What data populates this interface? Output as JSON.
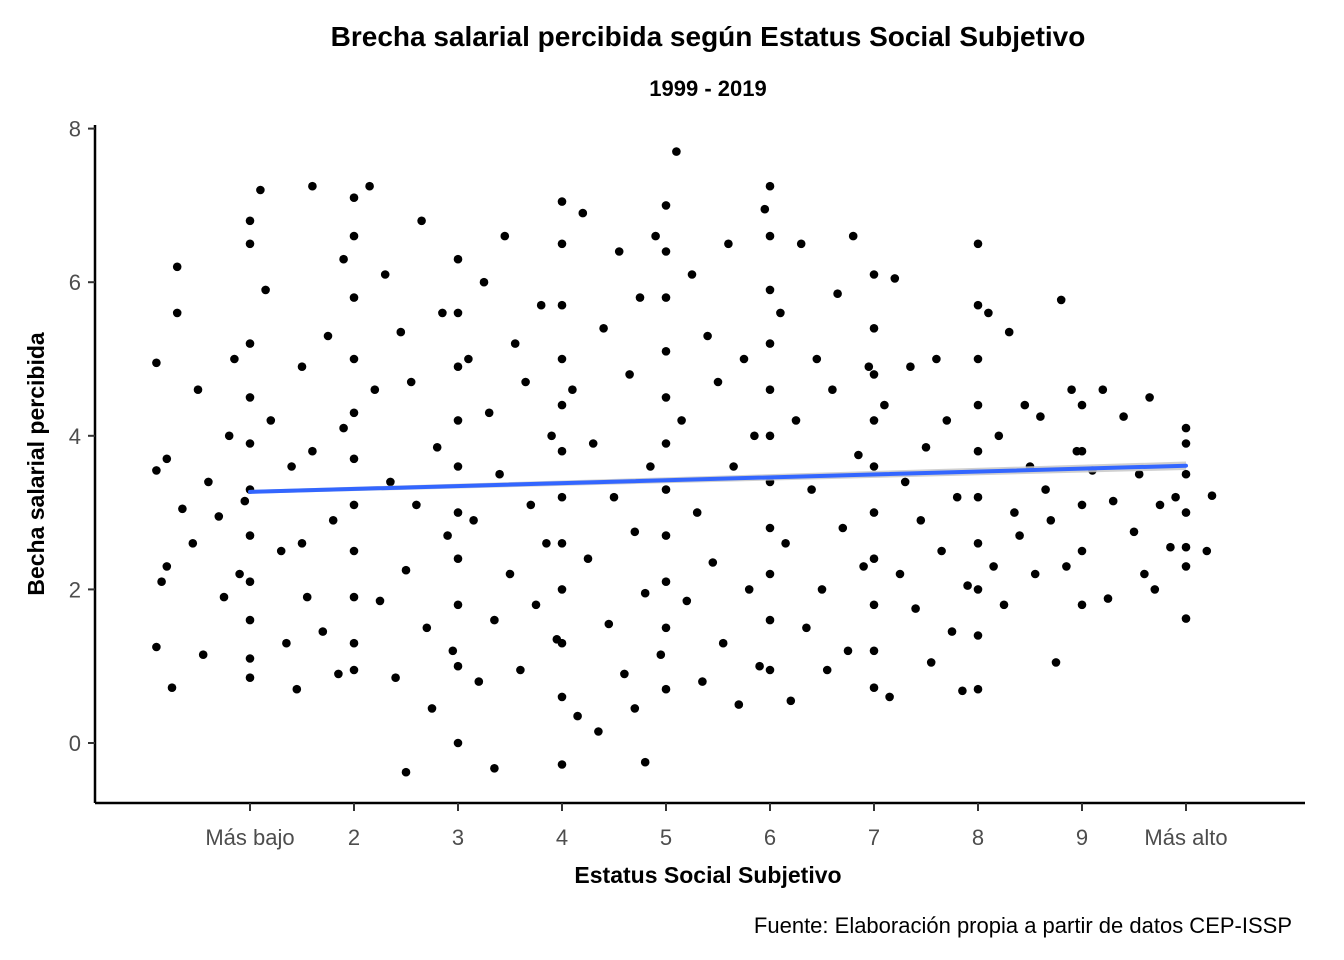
{
  "chart_data": {
    "type": "scatter",
    "title": "Brecha salarial percibida según Estatus Social Subjetivo",
    "subtitle": "1999 - 2019",
    "xlabel": "Estatus Social Subjetivo",
    "ylabel": "Becha salarial percibida",
    "caption": "Fuente: Elaboración propia a partir de datos CEP-ISSP",
    "xlim": [
      -0.5,
      11.2
    ],
    "ylim": [
      -0.8,
      8.1
    ],
    "x_ticks": [
      1,
      2,
      3,
      4,
      5,
      6,
      7,
      8,
      9,
      10
    ],
    "x_tick_labels": [
      "Más bajo",
      "2",
      "3",
      "4",
      "5",
      "6",
      "7",
      "8",
      "9",
      "Más alto"
    ],
    "y_ticks": [
      0,
      2,
      4,
      6,
      8
    ],
    "y_tick_labels": [
      "0",
      "2",
      "4",
      "6",
      "8"
    ],
    "grid": false,
    "point_color": "#000000",
    "fit_color": "#3366ff",
    "ribbon_color": "#c8c8c8",
    "fit_line": {
      "method": "lm",
      "x": [
        1,
        10
      ],
      "y": [
        3.27,
        3.61
      ],
      "ci_halfwidth": [
        0.025,
        0.055
      ]
    },
    "points": [
      [
        0.1,
        3.55
      ],
      [
        0.1,
        4.95
      ],
      [
        0.2,
        3.7
      ],
      [
        0.3,
        5.6
      ],
      [
        0.3,
        6.2
      ],
      [
        0.2,
        2.3
      ],
      [
        0.1,
        1.25
      ],
      [
        0.25,
        0.72
      ],
      [
        0.15,
        2.1
      ],
      [
        0.35,
        3.05
      ],
      [
        0.45,
        2.6
      ],
      [
        0.5,
        4.6
      ],
      [
        0.55,
        1.15
      ],
      [
        0.6,
        3.4
      ],
      [
        0.7,
        2.95
      ],
      [
        0.75,
        1.9
      ],
      [
        0.8,
        4.0
      ],
      [
        0.85,
        5.0
      ],
      [
        0.9,
        2.2
      ],
      [
        0.95,
        3.15
      ],
      [
        1,
        6.8
      ],
      [
        1,
        6.5
      ],
      [
        1,
        5.2
      ],
      [
        1,
        4.5
      ],
      [
        1,
        3.9
      ],
      [
        1,
        3.3
      ],
      [
        1,
        2.7
      ],
      [
        1,
        2.1
      ],
      [
        1,
        1.6
      ],
      [
        1,
        1.1
      ],
      [
        1,
        0.85
      ],
      [
        1.1,
        7.2
      ],
      [
        1.15,
        5.9
      ],
      [
        1.2,
        4.2
      ],
      [
        1.3,
        2.5
      ],
      [
        1.35,
        1.3
      ],
      [
        1.4,
        3.6
      ],
      [
        1.45,
        0.7
      ],
      [
        1.5,
        4.9
      ],
      [
        1.5,
        2.6
      ],
      [
        1.55,
        1.9
      ],
      [
        1.6,
        7.25
      ],
      [
        1.6,
        3.8
      ],
      [
        1.7,
        1.45
      ],
      [
        1.75,
        5.3
      ],
      [
        1.8,
        2.9
      ],
      [
        1.85,
        0.9
      ],
      [
        1.9,
        6.3
      ],
      [
        1.9,
        4.1
      ],
      [
        2,
        7.1
      ],
      [
        2,
        6.6
      ],
      [
        2,
        5.8
      ],
      [
        2,
        5.0
      ],
      [
        2,
        4.3
      ],
      [
        2,
        3.7
      ],
      [
        2,
        3.1
      ],
      [
        2,
        2.5
      ],
      [
        2,
        1.9
      ],
      [
        2,
        1.3
      ],
      [
        2,
        0.95
      ],
      [
        2.15,
        7.25
      ],
      [
        2.2,
        4.6
      ],
      [
        2.25,
        1.85
      ],
      [
        2.3,
        6.1
      ],
      [
        2.35,
        3.4
      ],
      [
        2.4,
        0.85
      ],
      [
        2.45,
        5.35
      ],
      [
        2.5,
        2.25
      ],
      [
        2.5,
        -0.38
      ],
      [
        2.55,
        4.7
      ],
      [
        2.6,
        3.1
      ],
      [
        2.65,
        6.8
      ],
      [
        2.7,
        1.5
      ],
      [
        2.75,
        0.45
      ],
      [
        2.8,
        3.85
      ],
      [
        2.85,
        5.6
      ],
      [
        2.9,
        2.7
      ],
      [
        2.95,
        1.2
      ],
      [
        3,
        6.3
      ],
      [
        3,
        5.6
      ],
      [
        3,
        4.9
      ],
      [
        3,
        4.2
      ],
      [
        3,
        3.6
      ],
      [
        3,
        3.0
      ],
      [
        3,
        2.4
      ],
      [
        3,
        1.8
      ],
      [
        3,
        1.0
      ],
      [
        3,
        0.0
      ],
      [
        3.1,
        5.0
      ],
      [
        3.15,
        2.9
      ],
      [
        3.2,
        0.8
      ],
      [
        3.25,
        6.0
      ],
      [
        3.3,
        4.3
      ],
      [
        3.35,
        1.6
      ],
      [
        3.35,
        -0.33
      ],
      [
        3.4,
        3.5
      ],
      [
        3.45,
        6.6
      ],
      [
        3.5,
        2.2
      ],
      [
        3.55,
        5.2
      ],
      [
        3.6,
        0.95
      ],
      [
        3.65,
        4.7
      ],
      [
        3.7,
        3.1
      ],
      [
        3.75,
        1.8
      ],
      [
        3.8,
        5.7
      ],
      [
        3.85,
        2.6
      ],
      [
        3.9,
        4.0
      ],
      [
        3.95,
        1.35
      ],
      [
        4,
        7.05
      ],
      [
        4,
        6.5
      ],
      [
        4,
        5.7
      ],
      [
        4,
        5.0
      ],
      [
        4,
        4.4
      ],
      [
        4,
        3.8
      ],
      [
        4,
        3.2
      ],
      [
        4,
        2.6
      ],
      [
        4,
        2.0
      ],
      [
        4,
        1.3
      ],
      [
        4,
        0.6
      ],
      [
        4,
        -0.28
      ],
      [
        4.1,
        4.6
      ],
      [
        4.15,
        0.35
      ],
      [
        4.2,
        6.9
      ],
      [
        4.25,
        2.4
      ],
      [
        4.3,
        3.9
      ],
      [
        4.35,
        0.15
      ],
      [
        4.4,
        5.4
      ],
      [
        4.45,
        1.55
      ],
      [
        4.5,
        3.2
      ],
      [
        4.55,
        6.4
      ],
      [
        4.6,
        0.9
      ],
      [
        4.65,
        4.8
      ],
      [
        4.7,
        2.75
      ],
      [
        4.7,
        0.45
      ],
      [
        4.75,
        5.8
      ],
      [
        4.8,
        1.95
      ],
      [
        4.8,
        -0.25
      ],
      [
        4.85,
        3.6
      ],
      [
        4.9,
        6.6
      ],
      [
        4.95,
        1.15
      ],
      [
        5,
        7.0
      ],
      [
        5,
        6.4
      ],
      [
        5,
        5.8
      ],
      [
        5,
        5.1
      ],
      [
        5,
        4.5
      ],
      [
        5,
        3.9
      ],
      [
        5,
        3.3
      ],
      [
        5,
        2.7
      ],
      [
        5,
        2.1
      ],
      [
        5,
        1.5
      ],
      [
        5,
        0.7
      ],
      [
        5.1,
        7.7
      ],
      [
        5.15,
        4.2
      ],
      [
        5.2,
        1.85
      ],
      [
        5.25,
        6.1
      ],
      [
        5.3,
        3.0
      ],
      [
        5.35,
        0.8
      ],
      [
        5.4,
        5.3
      ],
      [
        5.45,
        2.35
      ],
      [
        5.5,
        4.7
      ],
      [
        5.55,
        1.3
      ],
      [
        5.6,
        6.5
      ],
      [
        5.65,
        3.6
      ],
      [
        5.7,
        0.5
      ],
      [
        5.75,
        5.0
      ],
      [
        5.8,
        2.0
      ],
      [
        5.85,
        4.0
      ],
      [
        5.9,
        1.0
      ],
      [
        5.95,
        6.95
      ],
      [
        6,
        7.25
      ],
      [
        6,
        6.6
      ],
      [
        6,
        5.9
      ],
      [
        6,
        5.2
      ],
      [
        6,
        4.6
      ],
      [
        6,
        4.0
      ],
      [
        6,
        3.4
      ],
      [
        6,
        2.8
      ],
      [
        6,
        2.2
      ],
      [
        6,
        1.6
      ],
      [
        6,
        0.95
      ],
      [
        6.1,
        5.6
      ],
      [
        6.15,
        2.6
      ],
      [
        6.2,
        0.55
      ],
      [
        6.25,
        4.2
      ],
      [
        6.3,
        6.5
      ],
      [
        6.35,
        1.5
      ],
      [
        6.4,
        3.3
      ],
      [
        6.45,
        5.0
      ],
      [
        6.5,
        2.0
      ],
      [
        6.55,
        0.95
      ],
      [
        6.6,
        4.6
      ],
      [
        6.65,
        5.85
      ],
      [
        6.7,
        2.8
      ],
      [
        6.75,
        1.2
      ],
      [
        6.8,
        6.6
      ],
      [
        6.85,
        3.75
      ],
      [
        6.9,
        2.3
      ],
      [
        6.95,
        4.9
      ],
      [
        7,
        6.1
      ],
      [
        7,
        5.4
      ],
      [
        7,
        4.8
      ],
      [
        7,
        4.2
      ],
      [
        7,
        3.6
      ],
      [
        7,
        3.0
      ],
      [
        7,
        2.4
      ],
      [
        7,
        1.8
      ],
      [
        7,
        1.2
      ],
      [
        7,
        0.72
      ],
      [
        7.1,
        4.4
      ],
      [
        7.15,
        0.6
      ],
      [
        7.2,
        6.05
      ],
      [
        7.25,
        2.2
      ],
      [
        7.3,
        3.4
      ],
      [
        7.35,
        4.9
      ],
      [
        7.4,
        1.75
      ],
      [
        7.45,
        2.9
      ],
      [
        7.5,
        3.85
      ],
      [
        7.55,
        1.05
      ],
      [
        7.6,
        5.0
      ],
      [
        7.65,
        2.5
      ],
      [
        7.7,
        4.2
      ],
      [
        7.75,
        1.45
      ],
      [
        7.8,
        3.2
      ],
      [
        7.85,
        0.68
      ],
      [
        7.9,
        2.05
      ],
      [
        8,
        6.5
      ],
      [
        8,
        5.7
      ],
      [
        8,
        5.0
      ],
      [
        8,
        4.4
      ],
      [
        8,
        3.8
      ],
      [
        8,
        3.2
      ],
      [
        8,
        2.6
      ],
      [
        8,
        2.0
      ],
      [
        8,
        1.4
      ],
      [
        8,
        0.7
      ],
      [
        8.1,
        5.6
      ],
      [
        8.15,
        2.3
      ],
      [
        8.2,
        4.0
      ],
      [
        8.25,
        1.8
      ],
      [
        8.3,
        5.35
      ],
      [
        8.35,
        3.0
      ],
      [
        8.4,
        2.7
      ],
      [
        8.45,
        4.4
      ],
      [
        8.5,
        3.6
      ],
      [
        8.55,
        2.2
      ],
      [
        8.6,
        4.25
      ],
      [
        8.65,
        3.3
      ],
      [
        8.7,
        2.9
      ],
      [
        8.75,
        1.05
      ],
      [
        8.8,
        5.77
      ],
      [
        8.85,
        2.3
      ],
      [
        8.9,
        4.6
      ],
      [
        8.95,
        3.8
      ],
      [
        9,
        4.4
      ],
      [
        9,
        3.8
      ],
      [
        9,
        3.1
      ],
      [
        9,
        2.5
      ],
      [
        9,
        1.8
      ],
      [
        9.1,
        3.55
      ],
      [
        9.2,
        4.6
      ],
      [
        9.25,
        1.88
      ],
      [
        9.3,
        3.15
      ],
      [
        9.4,
        4.25
      ],
      [
        9.5,
        2.75
      ],
      [
        9.55,
        3.5
      ],
      [
        9.6,
        2.2
      ],
      [
        9.65,
        4.5
      ],
      [
        9.7,
        2.0
      ],
      [
        9.75,
        3.1
      ],
      [
        9.85,
        2.55
      ],
      [
        9.9,
        3.2
      ],
      [
        10,
        4.1
      ],
      [
        10,
        3.9
      ],
      [
        10,
        3.5
      ],
      [
        10,
        3.0
      ],
      [
        10,
        2.55
      ],
      [
        10,
        2.3
      ],
      [
        10,
        1.62
      ],
      [
        10.2,
        2.5
      ],
      [
        10.25,
        3.22
      ]
    ]
  }
}
